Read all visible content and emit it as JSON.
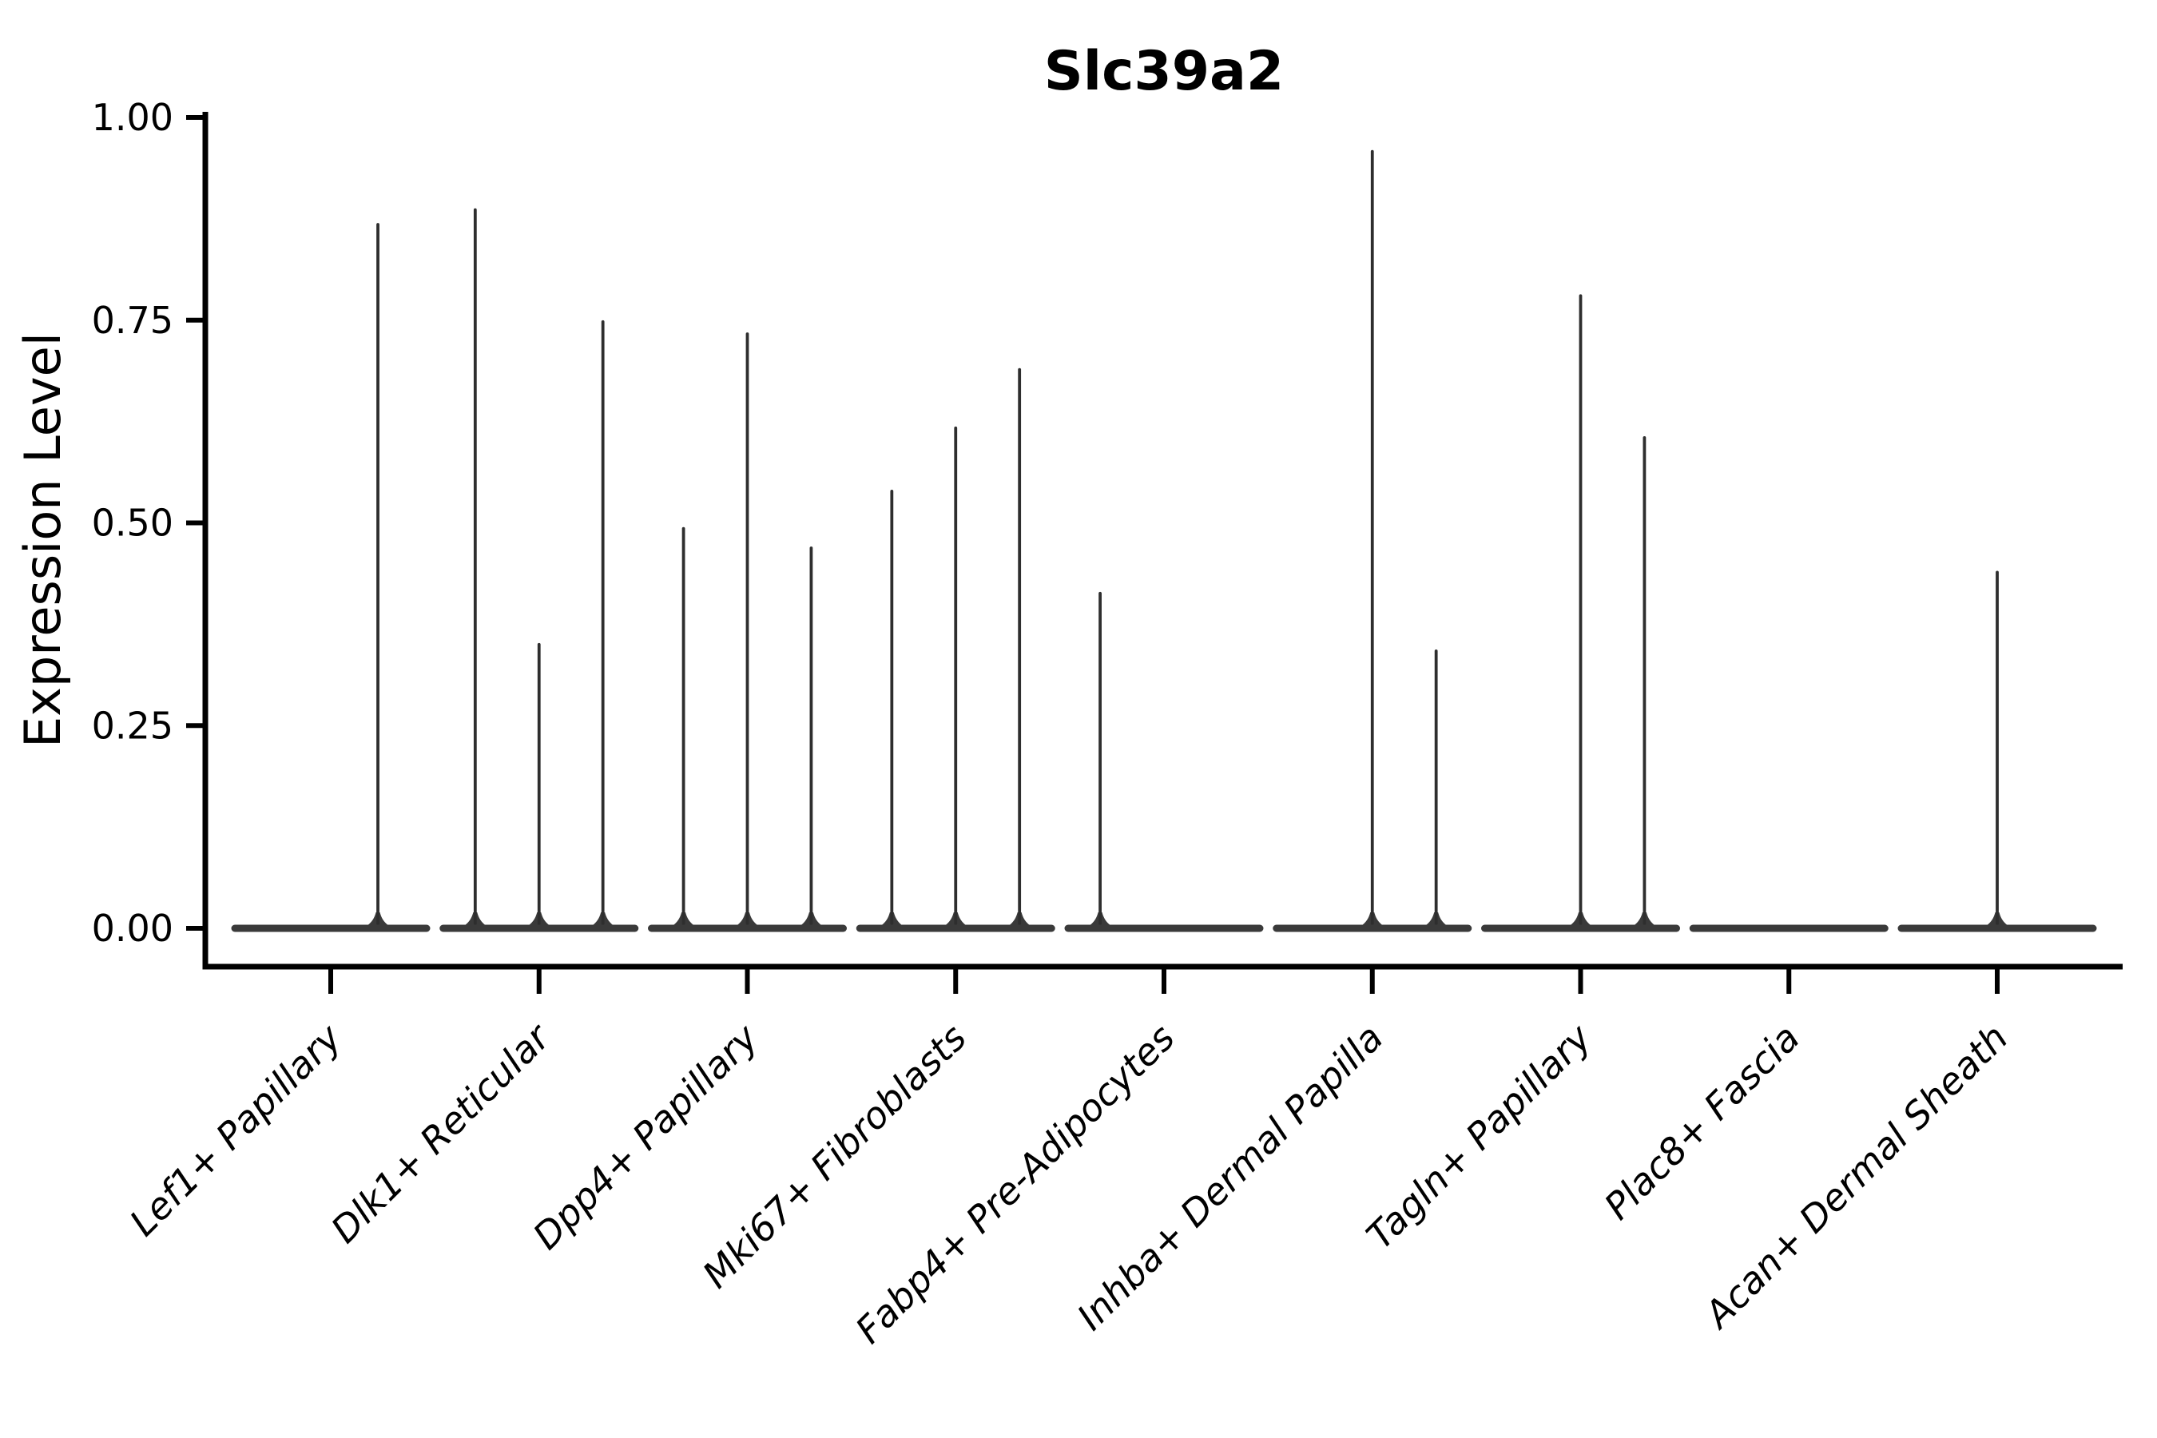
{
  "title": "Slc39a2",
  "chart_data": {
    "type": "violin",
    "title": "Slc39a2",
    "xlabel": "",
    "ylabel": "Expression Level",
    "ylim": [
      0.0,
      1.0
    ],
    "yticks": [
      0.0,
      0.25,
      0.5,
      0.75,
      1.0
    ],
    "ytick_labels": [
      "0.00",
      "0.25",
      "0.50",
      "0.75",
      "1.00"
    ],
    "grid": false,
    "legend": "none",
    "categories": [
      "Lef1+ Papillary",
      "Dlk1+ Reticular",
      "Dpp4+ Papillary",
      "Mki67+ Fibroblasts",
      "Fabp4+ Pre-Adipocytes",
      "Inhba+ Dermal Papilla",
      "Tagln+ Papillary",
      "Plac8+ Fascia",
      "Acan+ Dermal Sheath"
    ],
    "violins": [
      {
        "category": "Lef1+ Papillary",
        "baseline_value": 0.0,
        "spikes": [
          {
            "pos": 0.746,
            "max": 0.868
          }
        ]
      },
      {
        "category": "Dlk1+ Reticular",
        "baseline_value": 0.0,
        "spikes": [
          {
            "pos": 0.167,
            "max": 0.886
          },
          {
            "pos": 0.5,
            "max": 0.35
          },
          {
            "pos": 0.833,
            "max": 0.748
          }
        ]
      },
      {
        "category": "Dpp4+ Papillary",
        "baseline_value": 0.0,
        "spikes": [
          {
            "pos": 0.167,
            "max": 0.493
          },
          {
            "pos": 0.5,
            "max": 0.733
          },
          {
            "pos": 0.833,
            "max": 0.469
          }
        ]
      },
      {
        "category": "Mki67+ Fibroblasts",
        "baseline_value": 0.0,
        "spikes": [
          {
            "pos": 0.167,
            "max": 0.539
          },
          {
            "pos": 0.5,
            "max": 0.617
          },
          {
            "pos": 0.833,
            "max": 0.689
          }
        ]
      },
      {
        "category": "Fabp4+ Pre-Adipocytes",
        "baseline_value": 0.0,
        "spikes": [
          {
            "pos": 0.167,
            "max": 0.413
          }
        ]
      },
      {
        "category": "Inhba+ Dermal Papilla",
        "baseline_value": 0.0,
        "spikes": [
          {
            "pos": 0.5,
            "max": 0.958
          },
          {
            "pos": 0.833,
            "max": 0.342
          }
        ]
      },
      {
        "category": "Tagln+ Papillary",
        "baseline_value": 0.0,
        "spikes": [
          {
            "pos": 0.5,
            "max": 0.78
          },
          {
            "pos": 0.833,
            "max": 0.605
          }
        ]
      },
      {
        "category": "Plac8+ Fascia",
        "baseline_value": 0.0,
        "spikes": []
      },
      {
        "category": "Acan+ Dermal Sheath",
        "baseline_value": 0.0,
        "spikes": [
          {
            "pos": 0.5,
            "max": 0.439
          }
        ]
      }
    ],
    "colors": {
      "violin_line": "#2e2e2e",
      "violin_base": "#3a3a3a",
      "spine": "#000000",
      "text": "#000000",
      "background": "#ffffff"
    }
  }
}
